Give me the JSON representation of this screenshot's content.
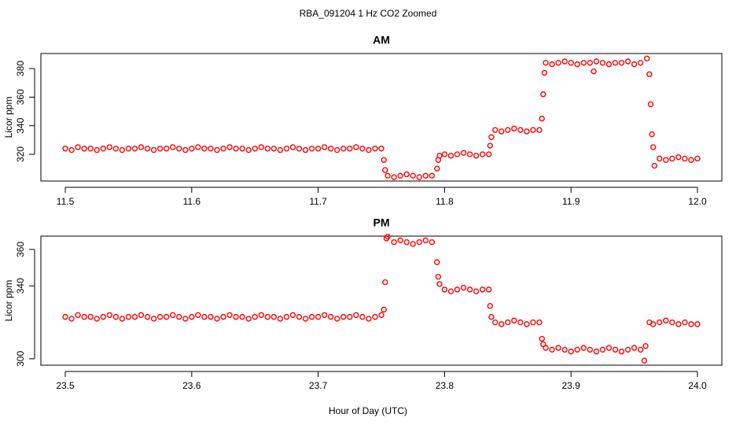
{
  "title": "RBA_091204  1 Hz CO2 Zoomed",
  "xlabel": "Hour of Day (UTC)",
  "chart_data": [
    {
      "type": "scatter",
      "title": "AM",
      "ylabel": "Licor ppm",
      "color": "#ff0000",
      "xlim": [
        11.4807,
        12.0193
      ],
      "ylim": [
        301.3,
        390.5
      ],
      "xticks": [
        11.5,
        11.6,
        11.7,
        11.8,
        11.9,
        {
          "value": 12,
          "label": "12.0"
        }
      ],
      "yticks": [
        320,
        340,
        360,
        380
      ],
      "x": [
        11.5,
        11.505,
        11.51,
        11.515,
        11.52,
        11.525,
        11.53,
        11.535,
        11.54,
        11.545,
        11.55,
        11.555,
        11.56,
        11.565,
        11.57,
        11.575,
        11.58,
        11.585,
        11.59,
        11.595,
        11.6,
        11.605,
        11.61,
        11.615,
        11.62,
        11.625,
        11.63,
        11.635,
        11.64,
        11.645,
        11.65,
        11.655,
        11.66,
        11.665,
        11.67,
        11.675,
        11.68,
        11.685,
        11.69,
        11.695,
        11.7,
        11.705,
        11.71,
        11.715,
        11.72,
        11.725,
        11.73,
        11.735,
        11.74,
        11.745,
        11.75,
        11.752,
        11.753,
        11.755,
        11.76,
        11.765,
        11.77,
        11.775,
        11.78,
        11.785,
        11.79,
        11.794,
        11.795,
        11.796,
        11.8,
        11.805,
        11.81,
        11.815,
        11.82,
        11.825,
        11.83,
        11.835,
        11.836,
        11.837,
        11.84,
        11.845,
        11.85,
        11.855,
        11.86,
        11.865,
        11.87,
        11.875,
        11.877,
        11.878,
        11.879,
        11.88,
        11.885,
        11.89,
        11.895,
        11.9,
        11.905,
        11.91,
        11.915,
        11.918,
        11.92,
        11.925,
        11.93,
        11.935,
        11.94,
        11.945,
        11.95,
        11.955,
        11.96,
        11.962,
        11.963,
        11.964,
        11.965,
        11.966,
        11.97,
        11.975,
        11.98,
        11.985,
        11.99,
        11.995,
        12.0
      ],
      "values": [
        324,
        323,
        325,
        324,
        324,
        323,
        324,
        325,
        324,
        323,
        324,
        324,
        325,
        324,
        323,
        324,
        324,
        325,
        324,
        323,
        324,
        325,
        324,
        324,
        323,
        324,
        325,
        324,
        324,
        323,
        324,
        325,
        324,
        324,
        323,
        324,
        325,
        324,
        323,
        324,
        324,
        325,
        324,
        323,
        324,
        324,
        325,
        324,
        323,
        324,
        324,
        316,
        309,
        305,
        304,
        305,
        306,
        305,
        304,
        305,
        305,
        310,
        316,
        319,
        320,
        319,
        320,
        321,
        320,
        319,
        320,
        320,
        326,
        332,
        337,
        336,
        337,
        338,
        337,
        336,
        337,
        337,
        345,
        362,
        377,
        384,
        383,
        384,
        385,
        384,
        383,
        384,
        384,
        378,
        385,
        384,
        383,
        384,
        384,
        385,
        383,
        384,
        387,
        376,
        355,
        334,
        325,
        312,
        317,
        316,
        317,
        318,
        317,
        316,
        317
      ]
    },
    {
      "type": "scatter",
      "title": "PM",
      "ylabel": "Licor ppm",
      "color": "#ff0000",
      "xlim": [
        23.4807,
        24.0193
      ],
      "ylim": [
        296.5,
        367.3
      ],
      "xticks": [
        23.5,
        23.6,
        23.7,
        23.8,
        23.9,
        {
          "value": 24,
          "label": "24.0"
        }
      ],
      "yticks": [
        300,
        340,
        360
      ],
      "x": [
        23.5,
        23.505,
        23.51,
        23.515,
        23.52,
        23.525,
        23.53,
        23.535,
        23.54,
        23.545,
        23.55,
        23.555,
        23.56,
        23.565,
        23.57,
        23.575,
        23.58,
        23.585,
        23.59,
        23.595,
        23.6,
        23.605,
        23.61,
        23.615,
        23.62,
        23.625,
        23.63,
        23.635,
        23.64,
        23.645,
        23.65,
        23.655,
        23.66,
        23.665,
        23.67,
        23.675,
        23.68,
        23.685,
        23.69,
        23.695,
        23.7,
        23.705,
        23.71,
        23.715,
        23.72,
        23.725,
        23.73,
        23.735,
        23.74,
        23.745,
        23.75,
        23.752,
        23.753,
        23.754,
        23.755,
        23.76,
        23.765,
        23.77,
        23.775,
        23.78,
        23.785,
        23.79,
        23.794,
        23.795,
        23.796,
        23.8,
        23.805,
        23.81,
        23.815,
        23.82,
        23.825,
        23.83,
        23.835,
        23.836,
        23.837,
        23.84,
        23.845,
        23.85,
        23.855,
        23.86,
        23.865,
        23.87,
        23.875,
        23.877,
        23.878,
        23.88,
        23.885,
        23.89,
        23.895,
        23.9,
        23.905,
        23.91,
        23.915,
        23.92,
        23.925,
        23.93,
        23.935,
        23.94,
        23.945,
        23.95,
        23.955,
        23.958,
        23.959,
        23.962,
        23.965,
        23.97,
        23.975,
        23.98,
        23.985,
        23.99,
        23.995,
        24.0
      ],
      "values": [
        323,
        322,
        324,
        323,
        323,
        322,
        323,
        324,
        323,
        322,
        323,
        323,
        324,
        323,
        322,
        323,
        323,
        324,
        323,
        322,
        323,
        324,
        323,
        323,
        322,
        323,
        324,
        323,
        323,
        322,
        323,
        324,
        323,
        323,
        322,
        323,
        324,
        323,
        322,
        323,
        323,
        324,
        323,
        322,
        323,
        323,
        324,
        323,
        322,
        323,
        324,
        327,
        342,
        366,
        367,
        364,
        365,
        364,
        363,
        364,
        365,
        364,
        353,
        345,
        341,
        338,
        337,
        338,
        339,
        338,
        337,
        338,
        338,
        329,
        323,
        320,
        319,
        320,
        321,
        320,
        319,
        320,
        320,
        311,
        308,
        306,
        305,
        306,
        305,
        304,
        305,
        306,
        305,
        304,
        305,
        306,
        305,
        304,
        305,
        306,
        305,
        299,
        307,
        320,
        319,
        320,
        321,
        320,
        319,
        320,
        319,
        319
      ]
    }
  ]
}
